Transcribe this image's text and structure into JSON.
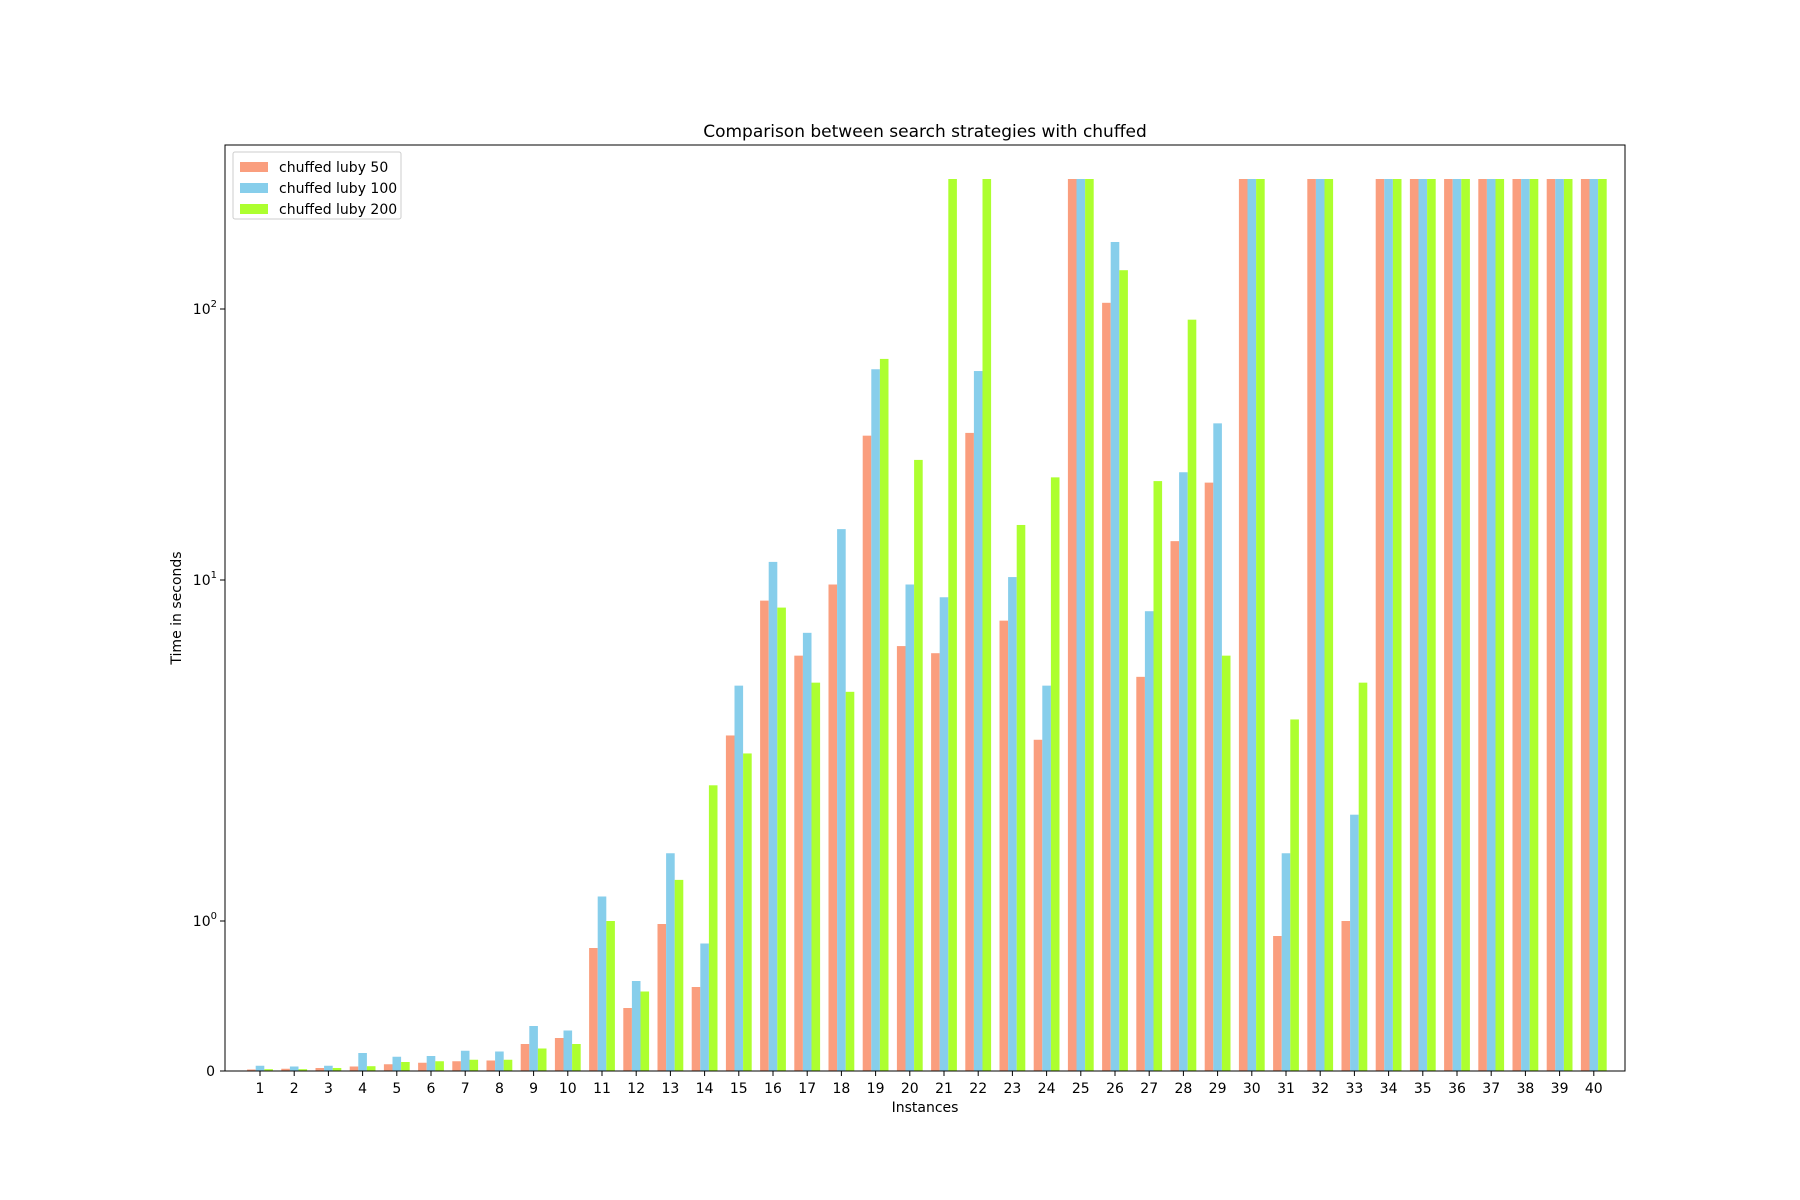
{
  "chart_data": {
    "type": "bar",
    "title": "Comparison between search strategies with chuffed",
    "xlabel": "Instances",
    "ylabel": "Time in seconds",
    "yscale": "symlog",
    "ylim": [
      0,
      300
    ],
    "yticks": [
      {
        "value": 0,
        "base": "0",
        "exp": ""
      },
      {
        "value": 1,
        "base": "10",
        "exp": "0"
      },
      {
        "value": 10,
        "base": "10",
        "exp": "1"
      },
      {
        "value": 100,
        "base": "10",
        "exp": "2"
      }
    ],
    "legend_position": "top-left",
    "grid": false,
    "categories": [
      "1",
      "2",
      "3",
      "4",
      "5",
      "6",
      "7",
      "8",
      "9",
      "10",
      "11",
      "12",
      "13",
      "14",
      "15",
      "16",
      "17",
      "18",
      "19",
      "20",
      "21",
      "22",
      "23",
      "24",
      "25",
      "26",
      "27",
      "28",
      "29",
      "30",
      "31",
      "32",
      "33",
      "34",
      "35",
      "36",
      "37",
      "38",
      "39",
      "40"
    ],
    "series": [
      {
        "name": "chuffed luby 50",
        "color": "#fa9e7e",
        "values": [
          0.01,
          0.015,
          0.02,
          0.03,
          0.045,
          0.055,
          0.065,
          0.07,
          0.18,
          0.22,
          0.82,
          0.42,
          0.98,
          0.56,
          3.5,
          8.7,
          6.0,
          9.7,
          26.5,
          6.4,
          6.1,
          27.0,
          7.6,
          3.4,
          300,
          65,
          5.2,
          13.0,
          19.3,
          300,
          0.9,
          300,
          1.0,
          300,
          300,
          300,
          300,
          300,
          300,
          300
        ]
      },
      {
        "name": "chuffed luby 100",
        "color": "#87ceeb",
        "values": [
          0.035,
          0.03,
          0.035,
          0.12,
          0.095,
          0.1,
          0.135,
          0.13,
          0.3,
          0.27,
          1.18,
          0.6,
          1.58,
          0.85,
          4.9,
          11.3,
          7.0,
          14.1,
          41.5,
          9.7,
          8.9,
          41.0,
          10.2,
          4.9,
          300,
          98,
          8.1,
          20.7,
          28.8,
          300,
          1.58,
          300,
          2.05,
          300,
          300,
          300,
          300,
          300,
          300,
          300
        ]
      },
      {
        "name": "chuffed luby 200",
        "color": "#adff2f",
        "values": [
          0.012,
          0.012,
          0.02,
          0.032,
          0.06,
          0.065,
          0.075,
          0.075,
          0.15,
          0.18,
          1.0,
          0.53,
          1.32,
          2.5,
          3.1,
          8.3,
          5.0,
          4.7,
          44.5,
          22.5,
          300,
          300,
          14.5,
          20.0,
          300,
          81,
          19.5,
          58,
          6.0,
          300,
          3.9,
          300,
          5.0,
          300,
          300,
          300,
          300,
          300,
          300,
          300
        ]
      }
    ]
  }
}
